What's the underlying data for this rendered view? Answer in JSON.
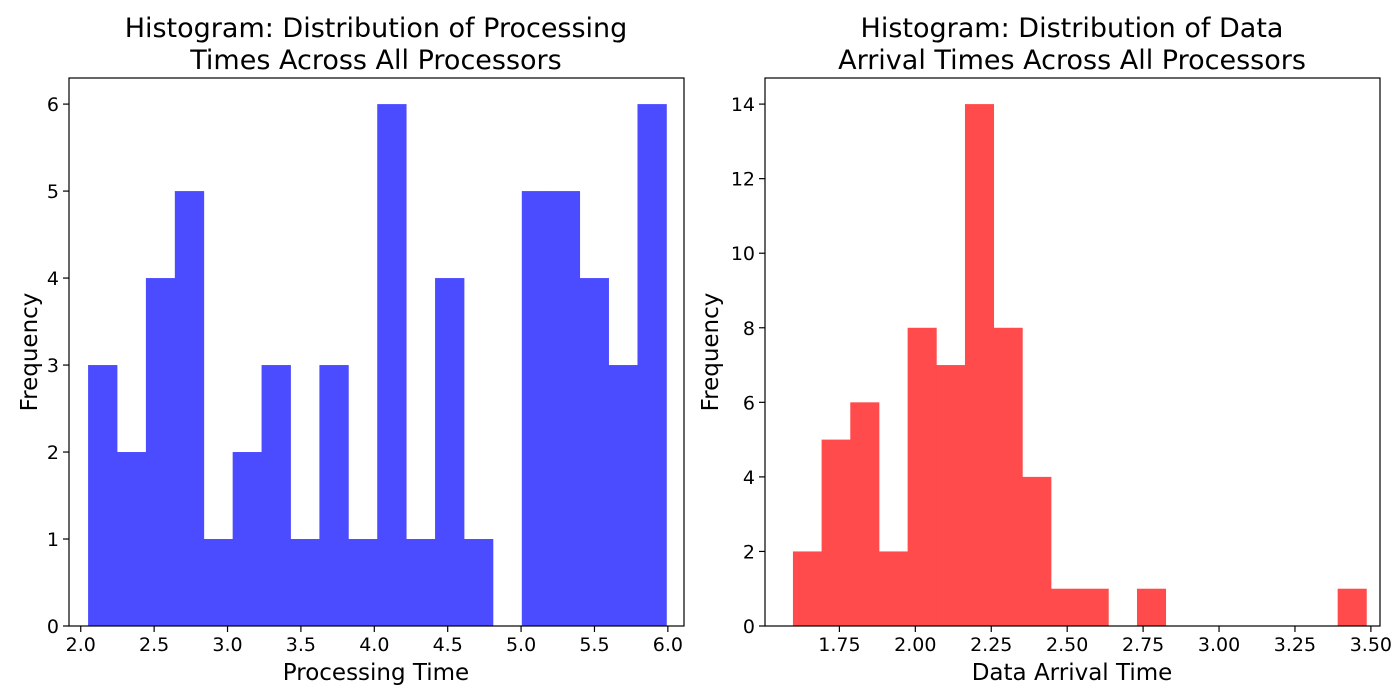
{
  "chart_data": [
    {
      "type": "bar",
      "title_lines": [
        "Histogram: Distribution of Processing",
        "Times Across All Processors"
      ],
      "xlabel": "Processing Time",
      "ylabel": "Frequency",
      "bar_color": "#4b4bff",
      "xlim": [
        1.92,
        6.11
      ],
      "ylim": [
        0,
        6.3
      ],
      "xticks": [
        2.0,
        2.5,
        3.0,
        3.5,
        4.0,
        4.5,
        5.0,
        5.5,
        6.0
      ],
      "xtick_labels": [
        "2.0",
        "2.5",
        "3.0",
        "3.5",
        "4.0",
        "4.5",
        "5.0",
        "5.5",
        "6.0"
      ],
      "yticks": [
        0,
        1,
        2,
        3,
        4,
        5,
        6
      ],
      "ytick_labels": [
        "0",
        "1",
        "2",
        "3",
        "4",
        "5",
        "6"
      ],
      "bin_start": 2.05,
      "bin_width": 0.197,
      "counts": [
        3,
        2,
        4,
        5,
        1,
        2,
        3,
        1,
        3,
        1,
        6,
        1,
        4,
        1,
        0,
        5,
        5,
        4,
        3,
        6
      ],
      "grid": false
    },
    {
      "type": "bar",
      "title_lines": [
        "Histogram: Distribution of Data",
        "Arrival Times Across All Processors"
      ],
      "xlabel": "Data Arrival Time",
      "ylabel": "Frequency",
      "bar_color": "#ff4b4b",
      "xlim": [
        1.505,
        3.53
      ],
      "ylim": [
        0,
        14.7
      ],
      "xticks": [
        1.75,
        2.0,
        2.25,
        2.5,
        2.75,
        3.0,
        3.25,
        3.5
      ],
      "xtick_labels": [
        "1.75",
        "2.00",
        "2.25",
        "2.50",
        "2.75",
        "3.00",
        "3.25",
        "3.50"
      ],
      "yticks": [
        0,
        2,
        4,
        6,
        8,
        10,
        12,
        14
      ],
      "ytick_labels": [
        "0",
        "2",
        "4",
        "6",
        "8",
        "10",
        "12",
        "14"
      ],
      "bin_start": 1.597,
      "bin_width": 0.0944,
      "counts": [
        2,
        5,
        6,
        2,
        8,
        7,
        14,
        8,
        4,
        1,
        1,
        0,
        1,
        0,
        0,
        0,
        0,
        0,
        0,
        1
      ],
      "grid": false
    }
  ]
}
